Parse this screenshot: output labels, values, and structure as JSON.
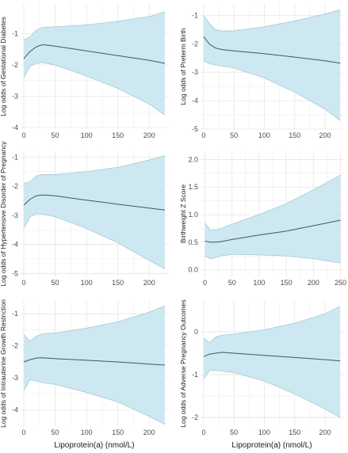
{
  "colors": {
    "band_fill": "#cde8f0",
    "band_stroke": "#9fc4d3",
    "line": "#3f5866",
    "grid": "#e6e6e6",
    "background": "#ffffff"
  },
  "chart_data": [
    {
      "type": "line",
      "panel": "top-left",
      "ylabel": "Log odds of Gestational Diabetes",
      "xlabel": "",
      "xlim": [
        -5,
        230
      ],
      "ylim": [
        -4.05,
        -0.05
      ],
      "xticks": [
        0,
        50,
        100,
        150,
        200
      ],
      "yticks": [
        -1,
        -2,
        -3,
        -4
      ],
      "grid": true,
      "x": [
        0,
        10,
        20,
        30,
        50,
        100,
        150,
        200,
        225
      ],
      "fit": [
        -1.8,
        -1.57,
        -1.42,
        -1.35,
        -1.4,
        -1.55,
        -1.7,
        -1.85,
        -1.95
      ],
      "lower": [
        -2.4,
        -2.05,
        -1.95,
        -1.92,
        -2.0,
        -2.35,
        -2.75,
        -3.25,
        -3.6
      ],
      "upper": [
        -1.2,
        -1.1,
        -0.88,
        -0.8,
        -0.78,
        -0.72,
        -0.6,
        -0.45,
        -0.3
      ]
    },
    {
      "type": "line",
      "panel": "top-right",
      "ylabel": "Log odds of Preterm Birth",
      "xlabel": "",
      "xlim": [
        -5,
        230
      ],
      "ylim": [
        -5.0,
        -0.6
      ],
      "xticks": [
        0,
        50,
        100,
        150,
        200
      ],
      "yticks": [
        -1,
        -2,
        -3,
        -4,
        -5
      ],
      "grid": true,
      "x": [
        0,
        10,
        20,
        30,
        50,
        100,
        150,
        200,
        225
      ],
      "fit": [
        -1.75,
        -2.02,
        -2.15,
        -2.2,
        -2.25,
        -2.35,
        -2.47,
        -2.6,
        -2.68
      ],
      "lower": [
        -2.6,
        -2.7,
        -2.75,
        -2.78,
        -2.85,
        -3.2,
        -3.7,
        -4.3,
        -4.7
      ],
      "upper": [
        -1.0,
        -1.3,
        -1.52,
        -1.55,
        -1.55,
        -1.4,
        -1.2,
        -0.95,
        -0.8
      ]
    },
    {
      "type": "line",
      "panel": "middle-left",
      "ylabel": "Log odds of Hypertensive Disorder of Pregnancy",
      "xlabel": "",
      "xlim": [
        -5,
        230
      ],
      "ylim": [
        -5.1,
        -0.8
      ],
      "xticks": [
        0,
        50,
        100,
        150,
        200
      ],
      "yticks": [
        -1,
        -2,
        -3,
        -4,
        -5
      ],
      "grid": true,
      "x": [
        0,
        10,
        20,
        30,
        50,
        100,
        150,
        200,
        225
      ],
      "fit": [
        -2.65,
        -2.45,
        -2.33,
        -2.3,
        -2.33,
        -2.48,
        -2.62,
        -2.75,
        -2.82
      ],
      "lower": [
        -3.45,
        -3.05,
        -2.95,
        -2.95,
        -3.05,
        -3.45,
        -3.95,
        -4.55,
        -4.85
      ],
      "upper": [
        -1.9,
        -1.85,
        -1.65,
        -1.6,
        -1.6,
        -1.5,
        -1.35,
        -1.1,
        -0.95
      ]
    },
    {
      "type": "line",
      "panel": "middle-right",
      "ylabel": "Birthweight Z Score",
      "xlabel": "",
      "xlim": [
        -8,
        255
      ],
      "ylim": [
        -0.12,
        2.15
      ],
      "xticks": [
        0,
        50,
        100,
        150,
        200,
        250
      ],
      "yticks": [
        0.0,
        0.5,
        1.0,
        1.5,
        2.0
      ],
      "ytick_labels": [
        "0.0",
        "0.5",
        "1.0",
        "1.5",
        "2.0"
      ],
      "grid": true,
      "x": [
        0,
        10,
        20,
        30,
        50,
        100,
        150,
        200,
        250
      ],
      "fit": [
        0.52,
        0.5,
        0.5,
        0.51,
        0.55,
        0.63,
        0.7,
        0.8,
        0.9
      ],
      "lower": [
        0.25,
        0.2,
        0.22,
        0.25,
        0.28,
        0.27,
        0.25,
        0.2,
        0.12
      ],
      "upper": [
        0.85,
        0.72,
        0.72,
        0.75,
        0.83,
        1.0,
        1.2,
        1.45,
        1.72
      ]
    },
    {
      "type": "line",
      "panel": "bottom-left",
      "ylabel": "Log odds of Intrauterine Growth Restriction",
      "xlabel": "Lipoprotein(a) (nmol/L)",
      "xlim": [
        -5,
        230
      ],
      "ylim": [
        -4.5,
        -0.6
      ],
      "xticks": [
        0,
        50,
        100,
        150,
        200
      ],
      "yticks": [
        -1,
        -2,
        -3,
        -4
      ],
      "grid": true,
      "x": [
        0,
        10,
        20,
        30,
        50,
        100,
        150,
        200,
        225
      ],
      "fit": [
        -2.5,
        -2.43,
        -2.38,
        -2.37,
        -2.4,
        -2.45,
        -2.5,
        -2.57,
        -2.6
      ],
      "lower": [
        -3.4,
        -3.05,
        -3.1,
        -3.15,
        -3.2,
        -3.45,
        -3.75,
        -4.2,
        -4.45
      ],
      "upper": [
        -1.65,
        -1.85,
        -1.7,
        -1.62,
        -1.6,
        -1.45,
        -1.25,
        -0.95,
        -0.75
      ]
    },
    {
      "type": "line",
      "panel": "bottom-right",
      "ylabel": "Log odds of Adverse Pregnancy Outcomes",
      "xlabel": "Lipoprotein(a) (nmol/L)",
      "xlim": [
        -5,
        230
      ],
      "ylim": [
        -2.2,
        0.72
      ],
      "xticks": [
        0,
        50,
        100,
        150,
        200
      ],
      "yticks": [
        0,
        -1,
        -2
      ],
      "grid": true,
      "x": [
        0,
        10,
        20,
        30,
        50,
        100,
        150,
        200,
        225
      ],
      "fit": [
        -0.58,
        -0.52,
        -0.5,
        -0.48,
        -0.5,
        -0.55,
        -0.6,
        -0.65,
        -0.68
      ],
      "lower": [
        -1.1,
        -0.9,
        -0.9,
        -0.92,
        -0.95,
        -1.15,
        -1.45,
        -1.8,
        -2.0
      ],
      "upper": [
        -0.15,
        -0.25,
        -0.12,
        -0.08,
        -0.05,
        0.05,
        0.2,
        0.42,
        0.6
      ]
    }
  ]
}
